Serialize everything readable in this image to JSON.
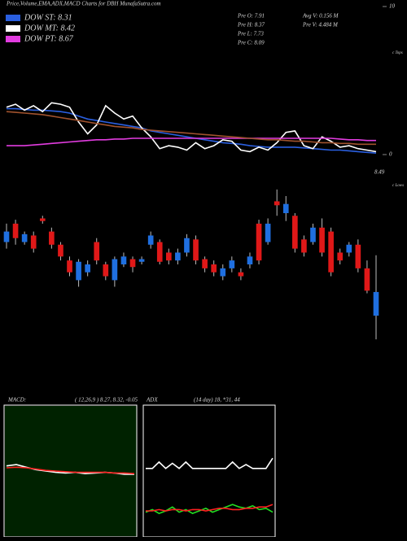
{
  "header": {
    "title": "Price,Volume,EMA,ADX,MACD Charts for DBH MunafaSutra.com",
    "stats": [
      "Pre  O: 7.91",
      "Pre  H: 8.37",
      "Pre  L: 7.73",
      "Pre  C: 8.09",
      "Avg V: 0.156  M",
      "Pre  V: 4.484  M"
    ]
  },
  "chart_data": [
    {
      "type": "line",
      "ylim": [
        0,
        10
      ],
      "yticks": [
        0,
        10
      ],
      "annotations": [
        "8.49",
        "c Tops",
        "c Lows"
      ],
      "series": [
        {
          "name": "DOW ST: 8.31",
          "color": "#2a5fe0",
          "values": [
            3.1,
            3.1,
            3.05,
            3.0,
            3.0,
            2.95,
            2.9,
            2.8,
            2.6,
            2.4,
            2.3,
            2.2,
            2.1,
            2.0,
            1.9,
            1.8,
            1.6,
            1.5,
            1.4,
            1.3,
            1.2,
            1.1,
            1.0,
            0.9,
            0.8,
            0.75,
            0.7,
            0.6,
            0.55,
            0.5,
            0.5,
            0.5,
            0.5,
            0.45,
            0.4,
            0.35,
            0.3,
            0.3,
            0.25,
            0.2,
            0.15,
            0.1
          ]
        },
        {
          "name": "DOW MT: 8.42",
          "color": "#ffffff",
          "values": [
            3.2,
            3.4,
            3.0,
            3.3,
            2.9,
            3.5,
            3.4,
            3.2,
            2.2,
            1.4,
            2.0,
            3.3,
            2.8,
            2.4,
            2.6,
            1.8,
            1.2,
            0.4,
            0.6,
            0.5,
            0.3,
            0.8,
            0.4,
            0.6,
            1.0,
            0.9,
            0.3,
            0.2,
            0.5,
            0.3,
            0.8,
            1.5,
            1.6,
            0.6,
            0.4,
            1.2,
            0.9,
            0.5,
            0.6,
            0.4,
            0.3,
            0.2
          ]
        },
        {
          "name": "DOW PT: 8.67",
          "color": "#e23ce0",
          "values": [
            0.6,
            0.6,
            0.6,
            0.65,
            0.7,
            0.75,
            0.8,
            0.85,
            0.9,
            0.95,
            1.0,
            1.0,
            1.05,
            1.05,
            1.1,
            1.1,
            1.1,
            1.1,
            1.1,
            1.1,
            1.1,
            1.1,
            1.1,
            1.1,
            1.1,
            1.1,
            1.1,
            1.1,
            1.1,
            1.1,
            1.1,
            1.1,
            1.1,
            1.1,
            1.1,
            1.1,
            1.1,
            1.05,
            1.0,
            1.0,
            0.95,
            0.95
          ]
        },
        {
          "color": "#a0522d",
          "values": [
            2.9,
            2.85,
            2.8,
            2.75,
            2.7,
            2.6,
            2.5,
            2.4,
            2.3,
            2.2,
            2.1,
            2.0,
            1.9,
            1.85,
            1.8,
            1.7,
            1.65,
            1.6,
            1.55,
            1.5,
            1.45,
            1.4,
            1.35,
            1.3,
            1.25,
            1.2,
            1.15,
            1.1,
            1.05,
            1.0,
            1.0,
            0.95,
            0.9,
            0.9,
            0.85,
            0.8,
            0.8,
            0.75,
            0.75,
            0.7,
            0.7,
            0.7
          ]
        }
      ]
    },
    {
      "type": "candlestick",
      "ylim": [
        7.65,
        8.95
      ],
      "up_color": "#1f6fe0",
      "down_color": "#e01818",
      "open": [
        8.47,
        8.61,
        8.47,
        8.52,
        8.65,
        8.55,
        8.45,
        8.33,
        8.18,
        8.24,
        8.47,
        8.3,
        8.18,
        8.3,
        8.34,
        8.32,
        8.45,
        8.47,
        8.39,
        8.33,
        8.39,
        8.49,
        8.34,
        8.3,
        8.21,
        8.27,
        8.24,
        8.3,
        8.61,
        8.47,
        8.78,
        8.69,
        8.67,
        8.49,
        8.47,
        8.58,
        8.55,
        8.39,
        8.39,
        8.45,
        8.27,
        7.91
      ],
      "high": [
        8.61,
        8.64,
        8.55,
        8.55,
        8.67,
        8.58,
        8.47,
        8.36,
        8.34,
        8.33,
        8.5,
        8.32,
        8.36,
        8.39,
        8.36,
        8.36,
        8.55,
        8.49,
        8.42,
        8.42,
        8.53,
        8.52,
        8.36,
        8.33,
        8.3,
        8.36,
        8.27,
        8.39,
        8.64,
        8.65,
        8.87,
        8.82,
        8.69,
        8.52,
        8.61,
        8.65,
        8.58,
        8.42,
        8.47,
        8.49,
        8.33,
        8.37
      ],
      "low": [
        8.42,
        8.45,
        8.45,
        8.39,
        8.61,
        8.42,
        8.33,
        8.21,
        8.13,
        8.21,
        8.3,
        8.18,
        8.13,
        8.28,
        8.24,
        8.3,
        8.42,
        8.3,
        8.3,
        8.3,
        8.36,
        8.3,
        8.24,
        8.21,
        8.18,
        8.24,
        8.18,
        8.27,
        8.3,
        8.45,
        8.67,
        8.63,
        8.39,
        8.36,
        8.45,
        8.36,
        8.21,
        8.3,
        8.36,
        8.24,
        8.08,
        7.73
      ],
      "close": [
        8.55,
        8.5,
        8.53,
        8.42,
        8.63,
        8.45,
        8.36,
        8.24,
        8.32,
        8.3,
        8.33,
        8.21,
        8.34,
        8.36,
        8.28,
        8.34,
        8.52,
        8.32,
        8.33,
        8.39,
        8.5,
        8.33,
        8.27,
        8.24,
        8.27,
        8.33,
        8.21,
        8.36,
        8.33,
        8.61,
        8.75,
        8.76,
        8.42,
        8.39,
        8.58,
        8.39,
        8.24,
        8.33,
        8.45,
        8.27,
        8.1,
        8.09
      ]
    },
    {
      "type": "line",
      "title": "MACD:",
      "subtitle": "( 12,26,9 ) 8.27, 8.32, -0.05",
      "ylim": [
        -1,
        1
      ],
      "background": "#002200",
      "series": [
        {
          "color": "#ffffff",
          "values": [
            0.08,
            0.1,
            0.06,
            0.02,
            0.0,
            -0.02,
            -0.03,
            -0.02,
            -0.04,
            -0.03,
            -0.02,
            -0.03,
            -0.05,
            -0.05
          ]
        },
        {
          "color": "#ff2020",
          "values": [
            0.05,
            0.06,
            0.05,
            0.03,
            0.01,
            0.0,
            -0.01,
            -0.02,
            -0.02,
            -0.02,
            -0.02,
            -0.03,
            -0.03,
            -0.04
          ]
        }
      ]
    },
    {
      "type": "line",
      "title": "ADX",
      "subtitle": "(14  day) 18, *31, 44",
      "ylim": [
        0,
        100
      ],
      "background": "#000000",
      "series": [
        {
          "color": "#ffffff",
          "values": [
            52,
            52,
            57,
            52,
            56,
            52,
            57,
            52,
            52,
            52,
            52,
            52,
            52,
            57,
            52,
            55,
            52,
            52,
            52,
            60
          ]
        },
        {
          "color": "#22dd22",
          "values": [
            18,
            20,
            17,
            19,
            22,
            18,
            20,
            17,
            19,
            21,
            18,
            20,
            22,
            24,
            22,
            21,
            23,
            20,
            21,
            18
          ]
        },
        {
          "color": "#ff2020",
          "values": [
            19,
            19,
            20,
            19,
            20,
            20,
            19,
            20,
            20,
            19,
            20,
            21,
            21,
            20,
            20,
            21,
            21,
            22,
            22,
            24
          ]
        }
      ]
    }
  ]
}
